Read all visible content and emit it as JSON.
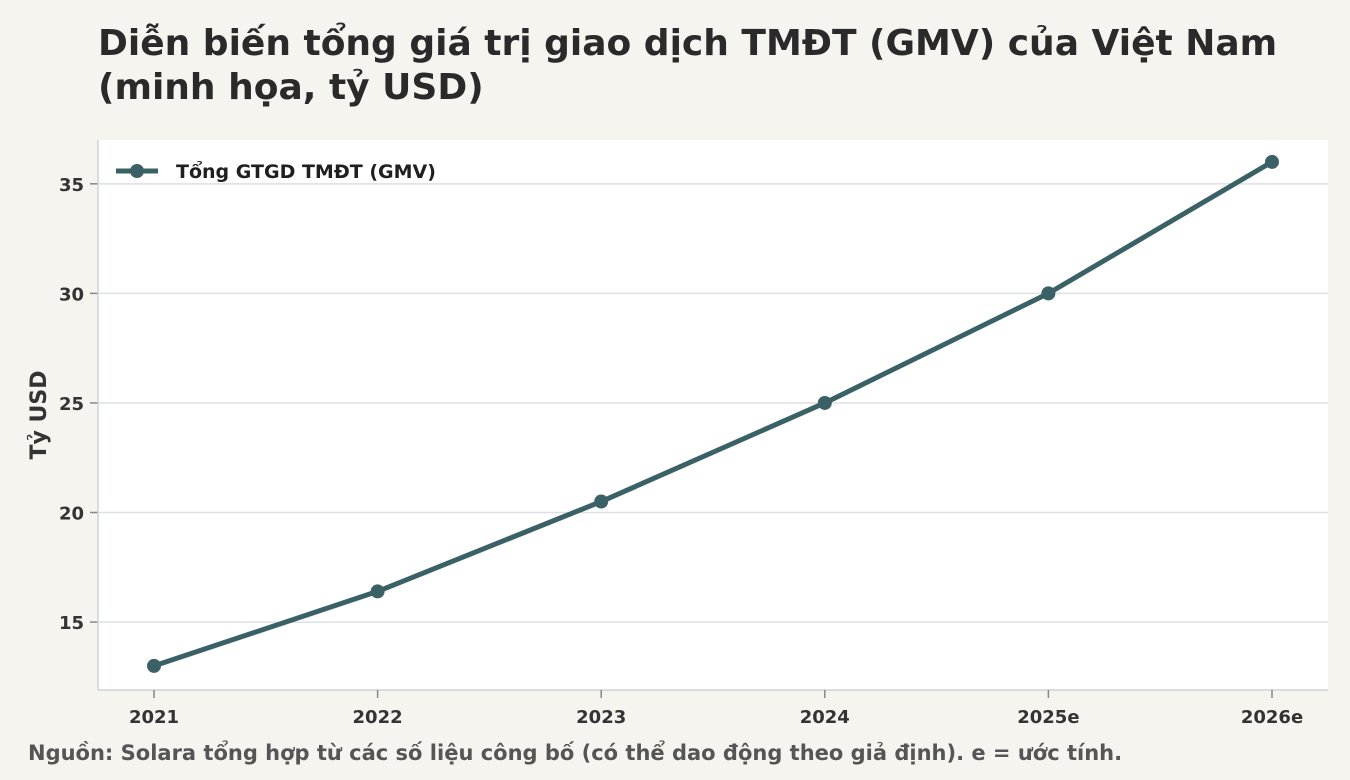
{
  "title": "Diễn biến tổng giá trị giao dịch TMĐT (GMV) của Việt Nam (minh họa, tỷ USD)",
  "source_note": "Nguồn: Solara tổng hợp từ các số liệu công bố (có thể dao động theo giả định). e = ước tính.",
  "colors": {
    "series": "#3a6166",
    "grid": "#dde1e3",
    "plot_bg": "#ffffff",
    "page_bg": "#f5f4ef"
  },
  "chart_data": {
    "type": "line",
    "categories": [
      "2021",
      "2022",
      "2023",
      "2024",
      "2025e",
      "2026e"
    ],
    "series": [
      {
        "name": "Tổng GTGD TMĐT (GMV)",
        "values": [
          13,
          16.4,
          20.5,
          25,
          30,
          36
        ]
      }
    ],
    "ylabel": "Tỷ USD",
    "xlabel": "",
    "ylim": [
      11.9,
      37
    ],
    "yticks": [
      15,
      20,
      25,
      30,
      35
    ],
    "grid": "horizontal",
    "legend": "top-left"
  }
}
